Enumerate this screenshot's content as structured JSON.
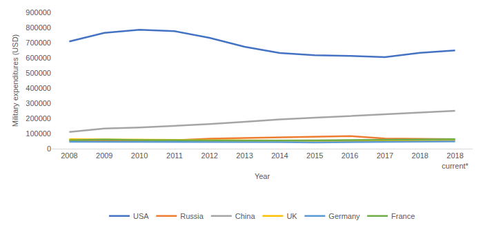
{
  "chart_data": {
    "type": "line",
    "x_label": "Year",
    "y_label": "Military expenditures (USD)",
    "categories": [
      "2008",
      "2009",
      "2010",
      "2011",
      "2012",
      "2013",
      "2014",
      "2015",
      "2016",
      "2017",
      "2018",
      "2018\ncurrent*"
    ],
    "series": [
      {
        "name": "USA",
        "color": "#4472C4",
        "values": [
          708000,
          765000,
          785000,
          776000,
          732000,
          673000,
          632000,
          617000,
          613000,
          605000,
          633000,
          649000
        ]
      },
      {
        "name": "Russia",
        "color": "#ED7D31",
        "values": [
          56000,
          54000,
          55000,
          56000,
          66000,
          70000,
          74000,
          78000,
          83000,
          67000,
          64000,
          62000
        ]
      },
      {
        "name": "China",
        "color": "#A5A5A5",
        "values": [
          110000,
          133000,
          140000,
          150000,
          162000,
          177000,
          193000,
          204000,
          216000,
          228000,
          240000,
          250000
        ]
      },
      {
        "name": "UK",
        "color": "#FFC000",
        "values": [
          62000,
          60000,
          58000,
          57000,
          56000,
          54000,
          53000,
          52000,
          50000,
          50000,
          51000,
          52000
        ]
      },
      {
        "name": "Germany",
        "color": "#5B9BD5",
        "values": [
          46000,
          46000,
          46000,
          45000,
          44000,
          43000,
          43000,
          41000,
          42000,
          44000,
          46000,
          48000
        ]
      },
      {
        "name": "France",
        "color": "#70AD47",
        "values": [
          56000,
          60000,
          57000,
          54000,
          54000,
          53000,
          53000,
          55000,
          57000,
          58000,
          62000,
          63000
        ]
      }
    ],
    "ylim": [
      0,
      900000
    ],
    "yticks": [
      0,
      100000,
      200000,
      300000,
      400000,
      500000,
      600000,
      700000,
      800000,
      900000
    ],
    "grid": false,
    "legend": "bottom"
  }
}
